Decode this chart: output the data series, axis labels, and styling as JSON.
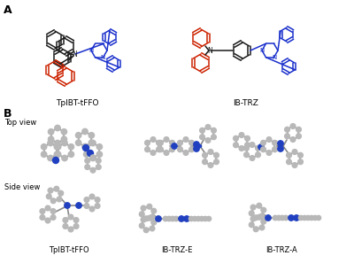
{
  "background_color": "#ffffff",
  "panel_A_label": "A",
  "panel_B_label": "B",
  "molecule1_name": "TpIBT-tFFO",
  "molecule2_name": "IB-TRZ",
  "top_view_label": "Top view",
  "side_view_label": "Side view",
  "mol3d_label1": "TpIBT-tFFO",
  "mol3d_label2": "IB-TRZ-E",
  "mol3d_label3": "IB-TRZ-A",
  "atom_color_C": "#b8b8b8",
  "atom_color_N": "#2040c0",
  "bond_color": "#999999",
  "struct_black": "#1a1a1a",
  "struct_red": "#cc2200",
  "struct_blue": "#1a30cc",
  "label_fontsize": 6.5,
  "panel_label_fontsize": 9
}
